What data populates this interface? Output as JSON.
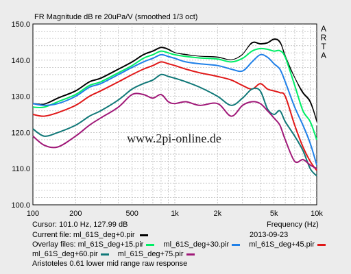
{
  "chart_data": {
    "type": "line",
    "title": "FR Magnitude dB re 20uPa/V (smoothed 1/3 oct)",
    "xlabel": "Frequency (Hz)",
    "ylabel": "",
    "x_scale": "log",
    "xlim": [
      100,
      10000
    ],
    "ylim": [
      100,
      150
    ],
    "x_tick_values": [
      100,
      200,
      500,
      1000,
      2000,
      5000,
      10000
    ],
    "x_tick_labels": [
      "100",
      "200",
      "500",
      "1k",
      "2k",
      "5k",
      "10k"
    ],
    "y_ticks": [
      100.0,
      110.0,
      120.0,
      130.0,
      140.0,
      150.0
    ],
    "y_tick_labels": [
      "100.0",
      "110.0",
      "120.0",
      "130.0",
      "140.0",
      "150.0"
    ],
    "grid": true,
    "brand": "ARTA",
    "watermark": "www.2pi-online.de",
    "series": [
      {
        "name": "ml_61S_deg+0.pir",
        "color": "#000000",
        "x": [
          100,
          120,
          150,
          200,
          250,
          300,
          400,
          500,
          600,
          700,
          800,
          900,
          1000,
          1200,
          1500,
          2000,
          2500,
          3000,
          3500,
          4000,
          4500,
          5000,
          5500,
          6000,
          7000,
          8000,
          9000,
          10000
        ],
        "y": [
          128,
          127.8,
          129.5,
          131.5,
          134,
          135,
          137.5,
          139.5,
          141.5,
          142.5,
          143.5,
          143,
          142,
          141.5,
          141,
          140.8,
          140,
          141.5,
          144.8,
          144.5,
          144.8,
          145.8,
          145,
          141,
          135,
          131,
          128.5,
          123
        ]
      },
      {
        "name": "ml_61S_deg+15.pir",
        "color": "#ffffff",
        "x": [
          100,
          120,
          150,
          200,
          250,
          300,
          400,
          500,
          600,
          700,
          800,
          900,
          1000,
          1200,
          1500,
          2000,
          2500,
          3000,
          3500,
          4000,
          4500,
          5000,
          5500,
          6000,
          7000,
          8000,
          9000,
          10000
        ],
        "y": [
          127.5,
          127.5,
          129,
          131,
          133.5,
          134.5,
          137,
          139,
          141,
          142,
          143,
          142.5,
          141.8,
          141.2,
          140.8,
          140.5,
          139.8,
          141.2,
          144.3,
          144,
          144.2,
          145,
          144.3,
          140,
          134.5,
          130,
          127.5,
          122
        ]
      },
      {
        "name": "ml_61S_deg+30.pir",
        "color": "#00ee66",
        "x": [
          100,
          120,
          150,
          200,
          250,
          300,
          400,
          500,
          600,
          700,
          800,
          900,
          1000,
          1200,
          1500,
          2000,
          2500,
          3000,
          3500,
          4000,
          4500,
          5000,
          5500,
          6000,
          7000,
          8000,
          9000,
          10000
        ],
        "y": [
          127,
          127,
          128.5,
          130.5,
          133,
          134,
          136.5,
          138.5,
          140.5,
          141.5,
          142.5,
          142,
          141.5,
          141,
          140.6,
          140.3,
          139.5,
          140.5,
          142.5,
          143.2,
          143,
          142.5,
          142.6,
          140.8,
          133,
          126,
          123,
          118
        ]
      },
      {
        "name": "ml_61S_deg+45.pir",
        "color": "#2080e8",
        "x": [
          100,
          120,
          150,
          200,
          250,
          300,
          400,
          500,
          600,
          700,
          800,
          900,
          1000,
          1200,
          1500,
          2000,
          2500,
          3000,
          3500,
          4000,
          4500,
          5000,
          5500,
          6000,
          7000,
          8000,
          9000,
          10000
        ],
        "y": [
          128,
          127.5,
          128,
          130,
          132.5,
          133.5,
          136,
          138,
          139.5,
          140.5,
          141.5,
          141,
          140.5,
          139.5,
          139,
          138.5,
          137.5,
          137,
          139.5,
          141.5,
          140.8,
          139,
          137.5,
          134,
          127,
          122,
          117,
          111
        ]
      },
      {
        "name": "ml_61S_deg+60.pir",
        "color": "#e01818",
        "x": [
          100,
          120,
          150,
          200,
          250,
          300,
          400,
          500,
          600,
          700,
          800,
          900,
          1000,
          1200,
          1500,
          2000,
          2500,
          3000,
          3500,
          4000,
          4500,
          5000,
          5500,
          6000,
          7000,
          8000,
          9000,
          10000
        ],
        "y": [
          125,
          124.5,
          125.5,
          127.5,
          130,
          131.5,
          134,
          136,
          137.5,
          138.5,
          139.5,
          139,
          138.5,
          137.5,
          136.5,
          135.5,
          134.5,
          133,
          132,
          133.5,
          132,
          131.5,
          131,
          130,
          122,
          116,
          112,
          109.5
        ]
      },
      {
        "name": "ml_61S_deg+75.pir",
        "color": "#107878",
        "x": [
          100,
          120,
          150,
          200,
          250,
          300,
          400,
          500,
          600,
          700,
          800,
          900,
          1000,
          1200,
          1500,
          2000,
          2500,
          3000,
          3500,
          4000,
          4500,
          5000,
          5500,
          6000,
          7000,
          8000,
          9000,
          10000
        ],
        "y": [
          121,
          119,
          120,
          122,
          124.5,
          126,
          129,
          132,
          133.5,
          134.5,
          136,
          135.5,
          135,
          134,
          132.5,
          130,
          127.5,
          129.5,
          132,
          131.5,
          126.5,
          125,
          126,
          123,
          119,
          115,
          110,
          108
        ]
      },
      {
        "name": "",
        "color": "#a01878",
        "x": [
          100,
          120,
          150,
          200,
          250,
          300,
          400,
          500,
          600,
          700,
          800,
          900,
          1000,
          1200,
          1500,
          2000,
          2500,
          3000,
          3500,
          4000,
          4500,
          5000,
          5500,
          6000,
          7000,
          8000,
          9000,
          10000
        ],
        "y": [
          119,
          116.5,
          116,
          119,
          122,
          124,
          127,
          130.5,
          130.5,
          129.5,
          130.5,
          128.5,
          128,
          128.5,
          127.5,
          128,
          124.5,
          127.5,
          128.5,
          128,
          126,
          124,
          122,
          118,
          112,
          112.5,
          111,
          110
        ]
      }
    ]
  },
  "cursor_text": "Cursor: 101.0 Hz, 127.99 dB",
  "current_file": {
    "label": "Current file:",
    "value": "ml_61S_deg+0.pir"
  },
  "date": "2013-09-23",
  "overlay": {
    "label": "Overlay files:",
    "files": [
      "ml_61S_deg+15.pir",
      "ml_61S_deg+30.pir",
      "ml_61S_deg+45.pir",
      "ml_61S_deg+60.pir",
      "ml_61S_deg+75.pir"
    ]
  },
  "caption": "Aristoteles 0.61 lower mid range raw response"
}
